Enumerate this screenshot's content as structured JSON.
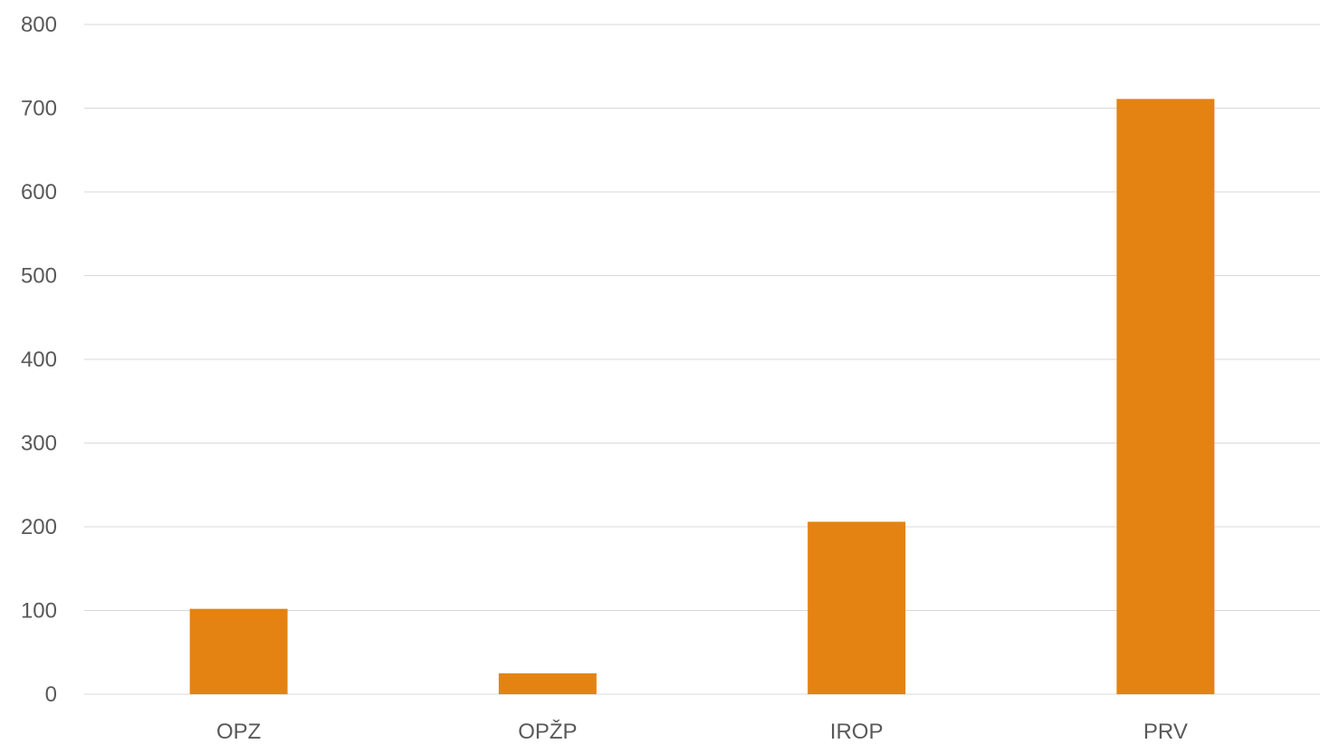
{
  "chart_data": {
    "type": "bar",
    "title": "",
    "xlabel": "",
    "ylabel": "",
    "categories": [
      "OPZ",
      "OPŽP",
      "IROP",
      "PRV"
    ],
    "values": [
      102,
      25,
      206,
      711
    ],
    "ylim": [
      0,
      800
    ],
    "yticks": [
      0,
      100,
      200,
      300,
      400,
      500,
      600,
      700,
      800
    ],
    "grid": true,
    "legend": "none",
    "bar_color": "#e48312",
    "gridline_color": "#d9d9d9",
    "tick_label_color": "#595959"
  }
}
